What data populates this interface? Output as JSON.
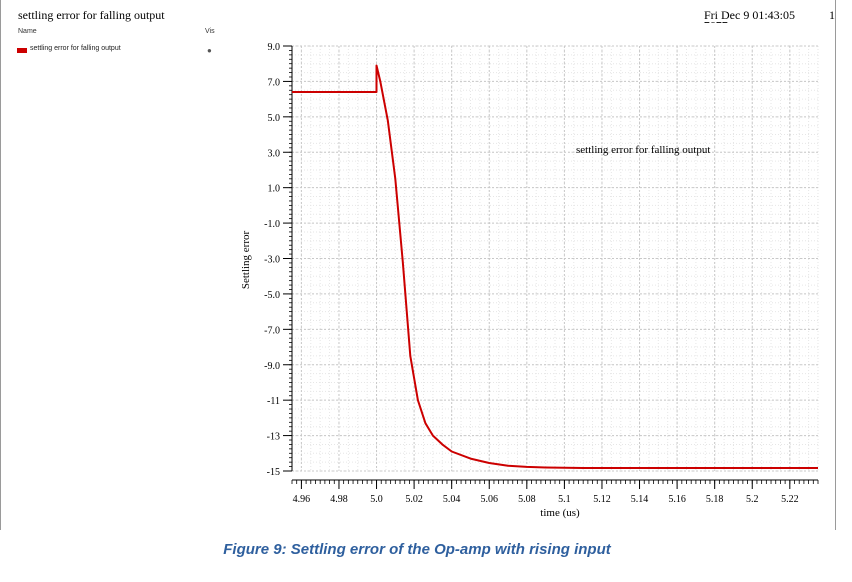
{
  "window": {
    "title": "settling error for falling output",
    "timestamp": "Fri Dec 9 01:43:05",
    "page_number": "1"
  },
  "legend_panel": {
    "name_header": "Name",
    "vis_header": "Vis",
    "entries": [
      {
        "label": "settling error for falling output",
        "color": "#cc0000",
        "icon": "eye-icon"
      }
    ]
  },
  "caption": "Figure 9: Settling error of the Op-amp with rising input",
  "chart_data": {
    "type": "line",
    "title": "settling error for falling output",
    "xlabel": "time (us)",
    "ylabel": "Settling error",
    "xlim": [
      4.955,
      5.235
    ],
    "ylim": [
      -15,
      9
    ],
    "x_ticks": [
      4.96,
      4.98,
      5.0,
      5.02,
      5.04,
      5.06,
      5.08,
      5.1,
      5.12,
      5.14,
      5.16,
      5.18,
      5.2,
      5.22
    ],
    "x_tick_labels": [
      "4.96",
      "4.98",
      "5.0",
      "5.02",
      "5.04",
      "5.06",
      "5.08",
      "5.1",
      "5.12",
      "5.14",
      "5.16",
      "5.18",
      "5.2",
      "5.22"
    ],
    "y_ticks": [
      9,
      7,
      5,
      3,
      1,
      -1,
      -3,
      -5,
      -7,
      -9,
      -11,
      -13,
      -15
    ],
    "y_tick_labels": [
      "9.0",
      "7.0",
      "5.0",
      "3.0",
      "1.0",
      "-1.0",
      "-3.0",
      "-5.0",
      "-7.0",
      "-9.0",
      "-11",
      "-13",
      "-15"
    ],
    "grid": true,
    "series": [
      {
        "name": "settling error for falling output",
        "color": "#cc0000",
        "x": [
          4.955,
          5.0,
          5.0,
          5.002,
          5.006,
          5.01,
          5.014,
          5.018,
          5.022,
          5.026,
          5.03,
          5.035,
          5.04,
          5.05,
          5.06,
          5.07,
          5.08,
          5.09,
          5.1,
          5.11,
          5.12,
          5.15,
          5.2,
          5.235
        ],
        "y": [
          6.4,
          6.4,
          7.9,
          7.0,
          4.8,
          1.5,
          -3.2,
          -8.5,
          -11.0,
          -12.3,
          -13.0,
          -13.5,
          -13.9,
          -14.3,
          -14.55,
          -14.7,
          -14.77,
          -14.8,
          -14.82,
          -14.83,
          -14.83,
          -14.83,
          -14.83,
          -14.83
        ]
      }
    ]
  }
}
